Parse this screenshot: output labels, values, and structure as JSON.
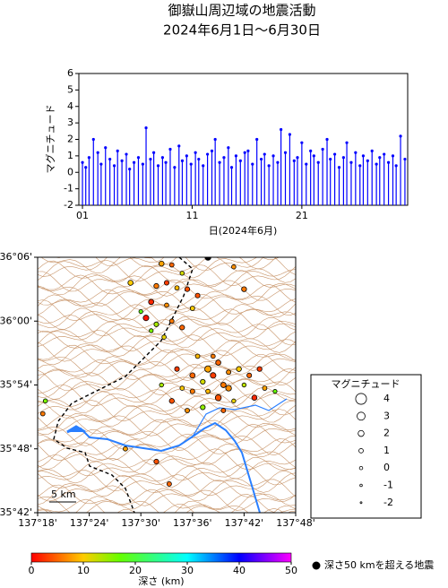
{
  "chart_data": [
    {
      "type": "stem",
      "title": "御嶽山周辺域の地震活動",
      "subtitle": "2024年6月1日〜6月30日",
      "y_label": "マグニチュード",
      "x_label": "日(2024年6月)",
      "color": "#0000ff",
      "xlim": [
        0.67,
        30.65
      ],
      "xticks": [
        {
          "value": 1,
          "label": "01"
        },
        {
          "value": 11,
          "label": "11"
        },
        {
          "value": 21,
          "label": "21"
        }
      ],
      "ylim": [
        -2,
        6
      ],
      "yticks": [
        -2,
        -1,
        0,
        1,
        2,
        3,
        4,
        5,
        6
      ],
      "x": [
        1.0,
        1.3,
        1.6,
        2.0,
        2.4,
        2.7,
        3.1,
        3.5,
        3.9,
        4.2,
        4.6,
        5.0,
        5.3,
        5.7,
        6.1,
        6.5,
        6.8,
        7.2,
        7.5,
        7.9,
        8.3,
        8.6,
        9.0,
        9.4,
        9.8,
        10.1,
        10.5,
        10.9,
        11.3,
        11.6,
        12.0,
        12.4,
        12.8,
        13.1,
        13.5,
        13.9,
        14.3,
        14.6,
        15.0,
        15.4,
        15.8,
        16.1,
        16.5,
        16.9,
        17.3,
        17.6,
        18.0,
        18.4,
        18.8,
        19.1,
        19.5,
        19.9,
        20.3,
        20.6,
        21.0,
        21.4,
        21.8,
        22.1,
        22.5,
        22.9,
        23.3,
        23.6,
        24.0,
        24.4,
        24.8,
        25.1,
        25.5,
        25.9,
        26.3,
        26.6,
        27.0,
        27.4,
        27.8,
        28.1,
        28.5,
        28.9,
        29.3,
        29.6,
        30.0,
        30.4
      ],
      "values": [
        0.6,
        0.3,
        0.9,
        2.0,
        1.2,
        0.5,
        1.5,
        0.8,
        0.4,
        1.3,
        0.7,
        1.1,
        0.2,
        0.6,
        0.9,
        0.5,
        2.7,
        0.8,
        1.2,
        0.4,
        0.9,
        0.6,
        1.4,
        0.3,
        1.6,
        0.7,
        1.0,
        0.5,
        1.2,
        0.8,
        0.4,
        1.1,
        1.3,
        2.0,
        0.6,
        0.9,
        1.5,
        0.3,
        1.0,
        0.7,
        1.2,
        1.3,
        0.5,
        2.0,
        0.8,
        1.1,
        0.4,
        1.0,
        0.6,
        2.6,
        1.2,
        2.3,
        0.7,
        0.9,
        1.8,
        0.5,
        1.3,
        1.0,
        0.6,
        1.4,
        2.0,
        0.8,
        1.1,
        0.3,
        0.9,
        1.8,
        0.6,
        1.2,
        0.4,
        1.0,
        0.7,
        1.3,
        0.5,
        0.9,
        1.1,
        0.6,
        1.0,
        0.4,
        2.2,
        0.8
      ]
    },
    {
      "type": "scatter",
      "xlim": [
        137.3,
        137.8
      ],
      "xticks": [
        {
          "value": 137.3,
          "label": "137°18'"
        },
        {
          "value": 137.4,
          "label": "137°24'"
        },
        {
          "value": 137.5,
          "label": "137°30'"
        },
        {
          "value": 137.6,
          "label": "137°36'"
        },
        {
          "value": 137.7,
          "label": "137°42'"
        },
        {
          "value": 137.8,
          "label": "137°48'"
        }
      ],
      "ylim": [
        35.7,
        36.1
      ],
      "yticks": [
        {
          "value": 35.7,
          "label": "35°42'"
        },
        {
          "value": 35.8,
          "label": "35°48'"
        },
        {
          "value": 35.9,
          "label": "35°54'"
        },
        {
          "value": 36.0,
          "label": "36°00'"
        },
        {
          "value": 36.1,
          "label": "36°06'"
        }
      ],
      "scale_label": "5 km",
      "x": [
        137.54,
        137.56,
        137.58,
        137.55,
        137.53,
        137.57,
        137.59,
        137.52,
        137.55,
        137.6,
        137.51,
        137.53,
        137.56,
        137.52,
        137.58,
        137.545,
        137.61,
        137.5,
        137.63,
        137.65,
        137.64,
        137.62,
        137.66,
        137.63,
        137.65,
        137.67,
        137.69,
        137.71,
        137.73,
        137.74,
        137.7,
        137.6,
        137.58,
        137.56,
        137.59,
        137.62,
        137.66,
        137.68,
        137.54,
        137.57,
        137.61,
        137.64,
        137.72,
        137.76,
        137.6,
        137.67,
        137.31,
        137.315,
        137.53,
        137.555,
        137.47,
        137.7,
        137.68,
        137.48,
        137.63
      ],
      "y": [
        36.09,
        36.088,
        36.075,
        36.06,
        36.055,
        36.052,
        36.05,
        36.03,
        36.025,
        36.02,
        36.005,
        35.995,
        36.0,
        35.985,
        35.99,
        35.975,
        36.04,
        36.015,
        35.925,
        35.935,
        35.915,
        35.905,
        35.9,
        35.89,
        35.88,
        35.92,
        35.925,
        35.915,
        35.925,
        35.895,
        35.9,
        35.89,
        35.895,
        35.875,
        35.86,
        35.865,
        35.86,
        35.875,
        35.9,
        35.925,
        35.945,
        35.945,
        35.88,
        35.89,
        35.915,
        35.895,
        35.855,
        35.875,
        35.78,
        35.745,
        35.8,
        36.05,
        36.085,
        36.06,
        36.1
      ],
      "sizes": [
        1.5,
        1.0,
        0.8,
        1.2,
        1.4,
        1.0,
        1.3,
        1.6,
        0.9,
        1.1,
        1.8,
        1.2,
        1.0,
        0.7,
        1.3,
        0.9,
        1.2,
        0.6,
        2.2,
        1.5,
        1.8,
        1.3,
        1.6,
        1.0,
        2.0,
        1.1,
        1.4,
        1.2,
        1.3,
        1.0,
        0.8,
        1.2,
        0.9,
        1.4,
        1.1,
        1.3,
        1.0,
        0.7,
        0.8,
        1.2,
        1.0,
        0.9,
        1.5,
        0.6,
        1.6,
        1.9,
        1.0,
        0.9,
        1.3,
        1.1,
        1.0,
        1.4,
        0.9,
        1.5,
        2.0
      ],
      "depths": [
        8,
        5,
        12,
        3,
        6,
        9,
        4,
        2,
        7,
        10,
        1,
        14,
        6,
        16,
        5,
        11,
        4,
        18,
        8,
        5,
        3,
        12,
        6,
        9,
        4,
        7,
        10,
        5,
        3,
        8,
        13,
        6,
        10,
        4,
        7,
        15,
        5,
        11,
        14,
        3,
        9,
        6,
        2,
        17,
        5,
        7,
        6,
        16,
        4,
        5,
        8,
        6,
        7,
        10,
        60
      ],
      "deep_color": "#000000",
      "deep_threshold": 50,
      "deep_label": "深さ50 kmを超える地震",
      "legend": {
        "title": "マグニチュード",
        "sizes": [
          4,
          3,
          2,
          1,
          0,
          -1,
          -2
        ]
      },
      "colorbar": {
        "label": "深さ (km)",
        "ticks": [
          0,
          10,
          20,
          30,
          40,
          50
        ],
        "stops": [
          0,
          10,
          17,
          30,
          40,
          50
        ],
        "colors": [
          "#ff0000",
          "#ffcc00",
          "#66ff00",
          "#00ffff",
          "#0000ff",
          "#ff00ff"
        ]
      }
    }
  ]
}
